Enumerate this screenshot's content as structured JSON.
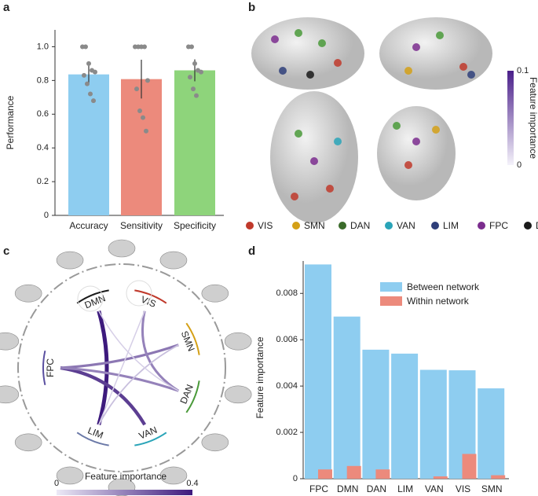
{
  "panels": [
    "a",
    "b",
    "c",
    "d"
  ],
  "chart_data": [
    {
      "type": "bar",
      "y_label": "Performance",
      "categories": [
        "Accuracy",
        "Sensitivity",
        "Specificity"
      ],
      "values": [
        0.836,
        0.808,
        0.86
      ],
      "errors": [
        0.056,
        0.115,
        0.065
      ],
      "colors": [
        "#8ecdf0",
        "#ec8a7c",
        "#8ed47b"
      ],
      "points": [
        [
          1.0,
          1.0,
          0.9,
          0.86,
          0.85,
          0.83,
          0.78,
          0.72,
          0.68
        ],
        [
          1.0,
          1.0,
          1.0,
          1.0,
          0.8,
          0.75,
          0.62,
          0.58,
          0.5
        ],
        [
          1.0,
          1.0,
          0.9,
          0.86,
          0.85,
          0.82,
          0.75,
          0.71
        ]
      ],
      "ylim": [
        0,
        1.1
      ],
      "yticks": [
        0,
        0.2,
        0.4,
        0.6,
        0.8,
        {
          "value": 1,
          "label": "1.0"
        }
      ]
    },
    {
      "type": "chord",
      "colorbar": {
        "label": "Feature importance",
        "lim": [
          0,
          0.4
        ],
        "ticks": [
          0,
          0.4
        ]
      },
      "nodes": [
        {
          "name": "DMN",
          "color": "#1a1a1a"
        },
        {
          "name": "VIS",
          "color": "#c0392b"
        },
        {
          "name": "SMN",
          "color": "#d4a017"
        },
        {
          "name": "DAN",
          "color": "#4a9a3a"
        },
        {
          "name": "VAN",
          "color": "#2aa4b8"
        },
        {
          "name": "LIM",
          "color": "#6c7aa8"
        },
        {
          "name": "FPC",
          "color": "#5a4fa0"
        }
      ],
      "links": [
        {
          "source": "DMN",
          "target": "LIM",
          "value": 0.4
        },
        {
          "source": "FPC",
          "target": "VAN",
          "value": 0.33
        },
        {
          "source": "FPC",
          "target": "SMN",
          "value": 0.22
        },
        {
          "source": "FPC",
          "target": "DAN",
          "value": 0.2
        },
        {
          "source": "VIS",
          "target": "DAN",
          "value": 0.2
        },
        {
          "source": "SMN",
          "target": "LIM",
          "value": 0.08
        },
        {
          "source": "DMN",
          "target": "DAN",
          "value": 0.05
        },
        {
          "source": "VIS",
          "target": "LIM",
          "value": 0.05
        }
      ]
    },
    {
      "type": "grouped_bar",
      "y_label": "Feature importance",
      "categories": [
        "FPC",
        "DMN",
        "DAN",
        "LIM",
        "VAN",
        "VIS",
        "SMN"
      ],
      "series": [
        {
          "name": "Between network",
          "color": "#8ecdf0",
          "values": [
            0.00925,
            0.007,
            0.00557,
            0.0054,
            0.0047,
            0.00468,
            0.0039
          ]
        },
        {
          "name": "Within network",
          "color": "#ec8a7c",
          "values": [
            0.0004,
            0.00055,
            0.0004,
            0,
            0.0001,
            0.00107,
            0.00015
          ]
        }
      ],
      "ylim": [
        0,
        0.0094
      ],
      "yticks": [
        0,
        0.002,
        0.004,
        0.006,
        0.008
      ]
    }
  ],
  "panel_b": {
    "legend": [
      {
        "name": "VIS",
        "color": "#c0392b"
      },
      {
        "name": "SMN",
        "color": "#d4a017"
      },
      {
        "name": "DAN",
        "color": "#3a6b2a"
      },
      {
        "name": "VAN",
        "color": "#2aa4b8"
      },
      {
        "name": "LIM",
        "color": "#2f3f7a"
      },
      {
        "name": "FPC",
        "color": "#7b2d8e"
      },
      {
        "name": "DMN",
        "color": "#1a1a1a"
      }
    ],
    "colorbar": {
      "label": "Feature importance",
      "lim": [
        0,
        0.1
      ],
      "ticks": [
        0,
        0.1
      ]
    }
  }
}
